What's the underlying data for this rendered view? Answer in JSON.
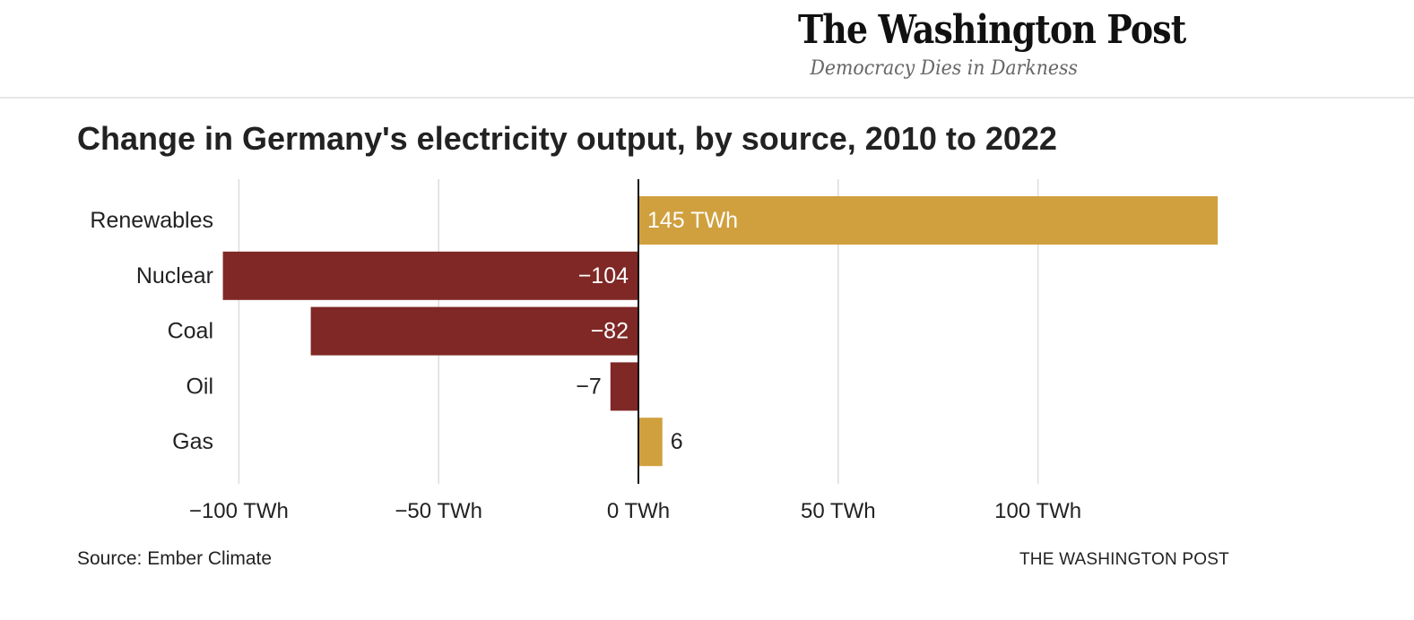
{
  "masthead": {
    "name": "The Washington Post",
    "tagline": "Democracy Dies in Darkness"
  },
  "chart_data": {
    "type": "bar",
    "orientation": "horizontal",
    "title": "Change in Germany's electricity output, by source, 2010 to 2022",
    "categories": [
      "Renewables",
      "Nuclear",
      "Coal",
      "Oil",
      "Gas"
    ],
    "values": [
      145,
      -104,
      -82,
      -7,
      6
    ],
    "data_labels": [
      "145 TWh",
      "−104",
      "−82",
      "−7",
      "6"
    ],
    "xlim": [
      -100,
      145
    ],
    "x_ticks": [
      -100,
      -50,
      0,
      50,
      100
    ],
    "x_tick_labels": [
      "−100 TWh",
      "−50 TWh",
      "0 TWh",
      "50 TWh",
      "100 TWh"
    ],
    "grid": true,
    "colors": {
      "positive": "#d0a03f",
      "negative": "#7f2825",
      "gridline": "#dddddd",
      "zero_line": "#111111"
    }
  },
  "footer": {
    "source": "Source: Ember Climate",
    "credit": "THE WASHINGTON POST"
  }
}
